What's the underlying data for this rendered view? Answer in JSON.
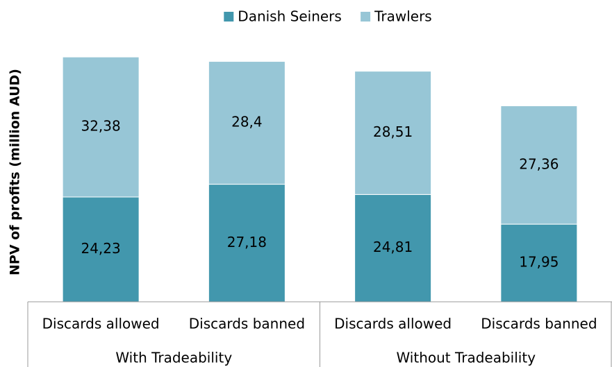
{
  "chart_data": {
    "type": "stacked-bar",
    "ylabel": "NPV of profits (million AUD)",
    "categories": [
      "Discards allowed",
      "Discards banned",
      "Discards allowed",
      "Discards banned"
    ],
    "groups": [
      "With Tradeability",
      "Without Tradeability"
    ],
    "series": [
      {
        "name": "Danish Seiners",
        "color": "#4297ad",
        "values": [
          24.23,
          27.18,
          24.81,
          17.95
        ],
        "value_labels": [
          "24,23",
          "27,18",
          "24,81",
          "17,95"
        ]
      },
      {
        "name": "Trawlers",
        "color": "#97c6d6",
        "values": [
          32.38,
          28.4,
          28.51,
          27.36
        ],
        "value_labels": [
          "32,38",
          "28,4",
          "28,51",
          "27,36"
        ]
      }
    ],
    "ylim": [
      0,
      60
    ],
    "legend": "top"
  }
}
